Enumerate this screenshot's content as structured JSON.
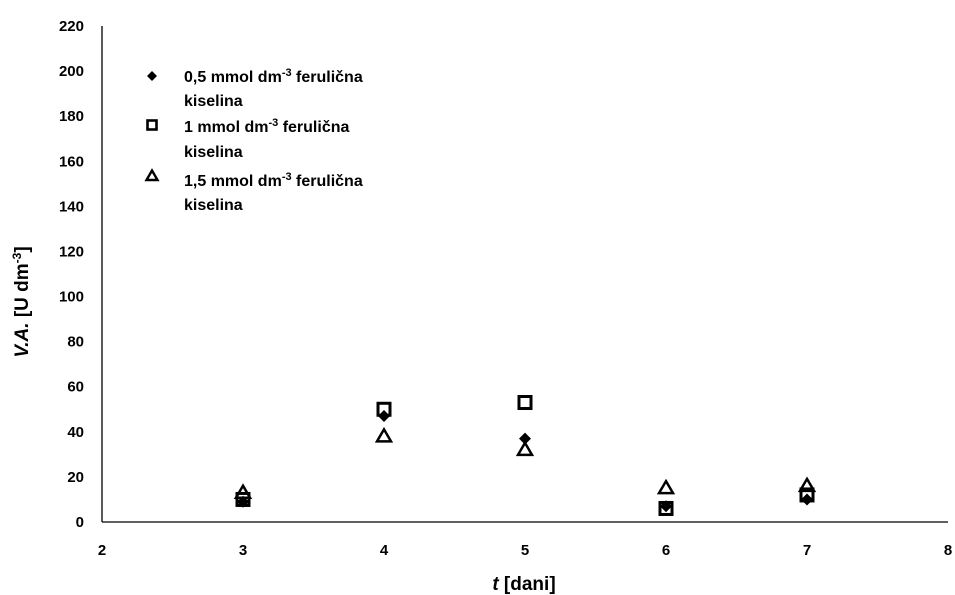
{
  "chart_data": {
    "type": "scatter",
    "xlabel": {
      "italic": "t",
      "rest": " [dani]"
    },
    "ylabel": {
      "italic": "V.A.",
      "unit_prefix": " [U dm",
      "unit_sup": "-3",
      "unit_suffix": "]"
    },
    "xlim": [
      2,
      8
    ],
    "ylim": [
      0,
      220
    ],
    "x_ticks": [
      2,
      3,
      4,
      5,
      6,
      7,
      8
    ],
    "y_ticks": [
      0,
      20,
      40,
      60,
      80,
      100,
      120,
      140,
      160,
      180,
      200,
      220
    ],
    "grid": false,
    "legend_position": "top-left",
    "series": [
      {
        "name_line1_a": "0,5 mmol dm",
        "name_sup": "-3",
        "name_line1_b": " ferulična",
        "name_line2": "kiselina",
        "marker": "diamond",
        "x": [
          3,
          4,
          5,
          6,
          7
        ],
        "y": [
          9,
          47,
          37,
          7,
          10
        ]
      },
      {
        "name_line1_a": "1 mmol dm",
        "name_sup": "-3",
        "name_line1_b": " ferulična",
        "name_line2": "kiselina",
        "marker": "square",
        "x": [
          3,
          4,
          5,
          6,
          7
        ],
        "y": [
          10,
          50,
          53,
          6,
          12
        ]
      },
      {
        "name_line1_a": "1,5 mmol dm",
        "name_sup": "-3",
        "name_line1_b": " ferulična",
        "name_line2": "kiselina",
        "marker": "triangle",
        "x": [
          3,
          4,
          5,
          6,
          7
        ],
        "y": [
          13,
          38,
          32,
          15,
          16
        ]
      }
    ]
  }
}
